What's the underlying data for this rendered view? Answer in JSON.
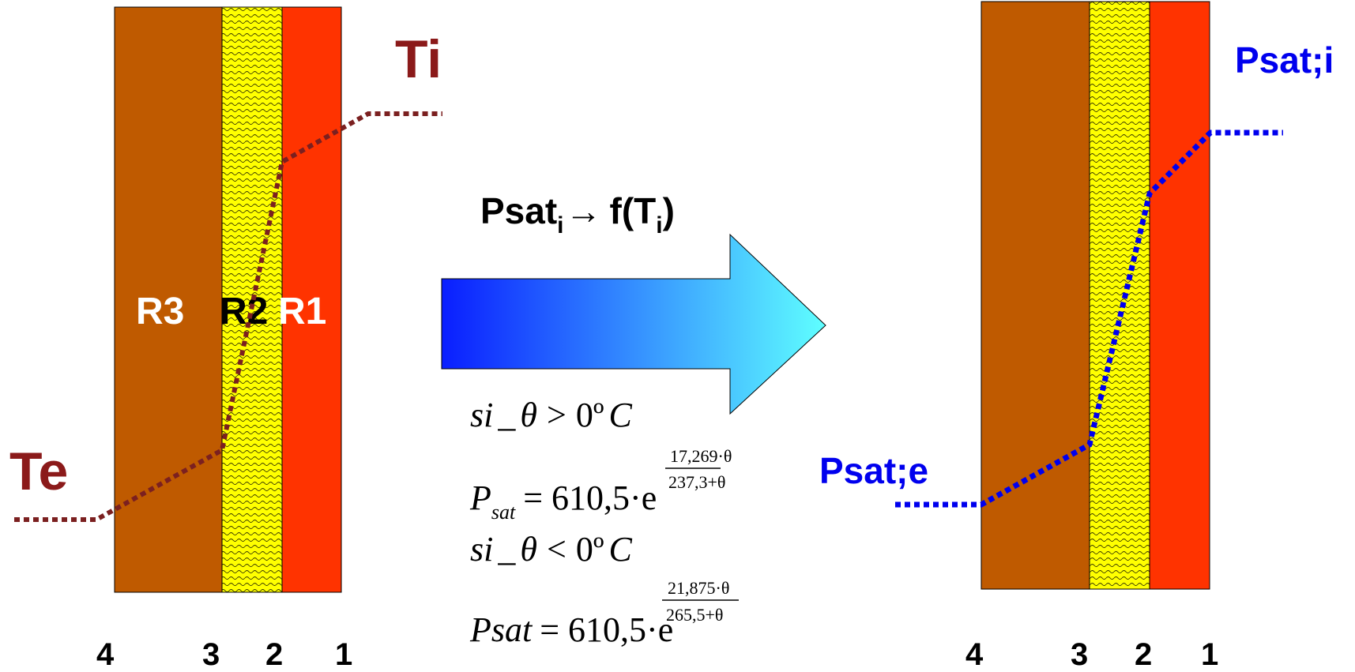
{
  "left_wall": {
    "layers": [
      {
        "label": "R3",
        "material": "masonry",
        "color": "#BF5A00"
      },
      {
        "label": "R2",
        "material": "insulation",
        "color": "#FFFF00"
      },
      {
        "label": "R1",
        "material": "finish",
        "color": "#FF3300"
      }
    ],
    "interfaces": [
      "4",
      "3",
      "2",
      "1"
    ],
    "interior_label": "Ti",
    "exterior_label": "Te",
    "profile_color": "#7B2020"
  },
  "right_wall": {
    "interfaces": [
      "4",
      "3",
      "2",
      "1"
    ],
    "interior_label": "Psat;i",
    "exterior_label": "Psat;e",
    "profile_color": "#0000EE"
  },
  "arrow": {
    "caption_main": "Psat",
    "caption_sub": "i",
    "caption_arrow": "→",
    "caption_func": "f(T",
    "caption_func_sub": "i",
    "caption_close": ")",
    "gradient_start": "#0A1EFF",
    "gradient_end": "#5FFFFF"
  },
  "formulas": {
    "cond_above": {
      "prefix": "si",
      "underscore": "_",
      "theta": "θ",
      "op": ">",
      "zero": "0º",
      "unit": "C"
    },
    "eq_above": {
      "P": "P",
      "sub": "sat",
      "eq": "= 610,5·e",
      "num": "17,269·θ",
      "den": "237,3+θ"
    },
    "cond_below": {
      "prefix": "si",
      "underscore": "_",
      "theta": "θ",
      "op": "<",
      "zero": "0º",
      "unit": "C"
    },
    "eq_below": {
      "P": "Psat",
      "eq": "= 610,5·e",
      "num": "21,875·θ",
      "den": "265,5+θ"
    }
  }
}
